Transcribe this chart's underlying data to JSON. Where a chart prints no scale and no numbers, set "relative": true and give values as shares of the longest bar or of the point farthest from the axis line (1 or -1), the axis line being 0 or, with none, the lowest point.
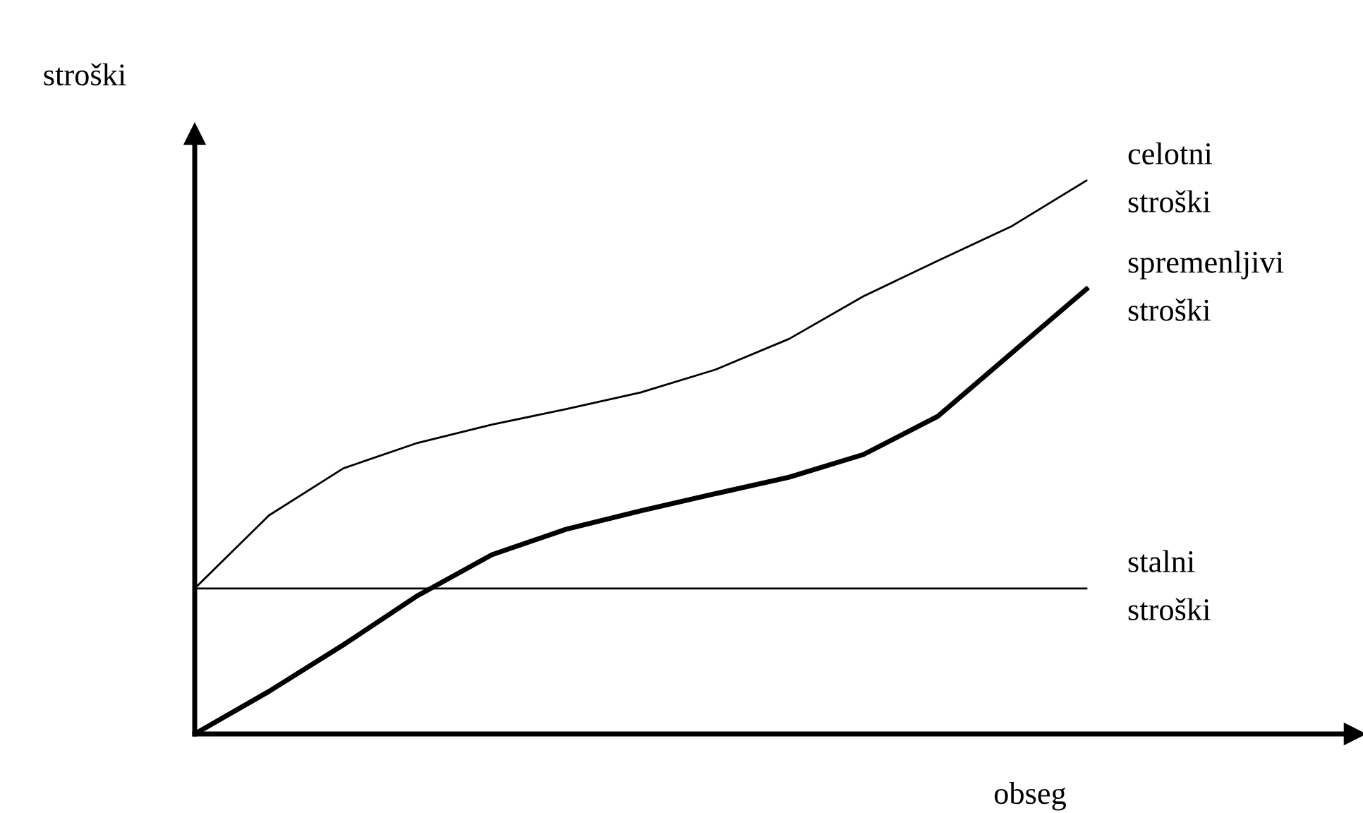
{
  "chart_data": {
    "type": "line",
    "relative": true,
    "xlabel": "obseg",
    "ylabel": "stroški",
    "categories": [
      null,
      null,
      null,
      null,
      null,
      null,
      null,
      null,
      null,
      null,
      null,
      null,
      null
    ],
    "tick_labels": false,
    "legend": false,
    "marker": "none",
    "line_style": "solid",
    "series": [
      {
        "name": "celotni\nstroški",
        "color": "#000000",
        "values": [
          0.263,
          0.395,
          0.48,
          0.526,
          0.559,
          0.587,
          0.617,
          0.658,
          0.714,
          0.791,
          0.855,
          0.918,
          1
        ]
      },
      {
        "name": "spremenljivi\nstroški",
        "color": "#000000",
        "values": [
          0,
          0.077,
          0.161,
          0.25,
          0.324,
          0.37,
          0.403,
          0.434,
          0.464,
          0.505,
          0.574,
          0.689,
          0.804
        ]
      },
      {
        "name": "stalni\nstroški",
        "color": "#000000",
        "values": [
          0.263,
          0.263,
          0.263,
          0.263,
          0.263,
          0.263,
          0.263,
          0.263,
          0.263,
          0.263,
          0.263,
          0.263,
          0.263
        ]
      }
    ]
  }
}
